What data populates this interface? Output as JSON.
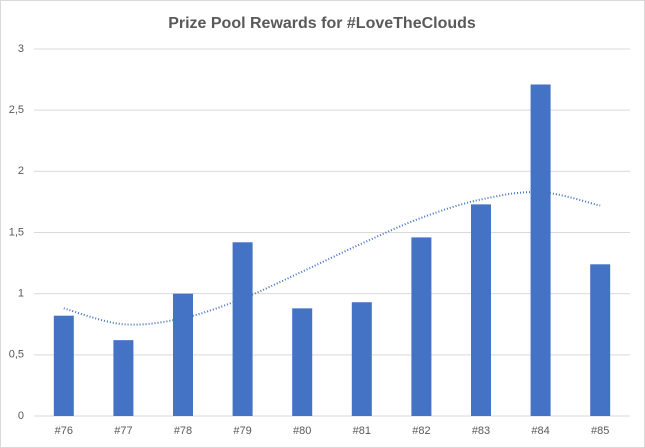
{
  "chart_data": {
    "type": "bar",
    "title": "Prize Pool Rewards for #LoveTheClouds",
    "categories": [
      "#76",
      "#77",
      "#78",
      "#79",
      "#80",
      "#81",
      "#82",
      "#83",
      "#84",
      "#85"
    ],
    "values": [
      0.82,
      0.62,
      1.0,
      1.42,
      0.88,
      0.93,
      1.46,
      1.73,
      2.71,
      1.24
    ],
    "color": "#4472c4",
    "trendline": {
      "values": [
        0.88,
        0.75,
        0.8,
        0.96,
        1.18,
        1.41,
        1.62,
        1.77,
        1.83,
        1.72
      ],
      "color": "#4472c4",
      "style": "dotted"
    },
    "ylim": [
      0,
      3
    ],
    "yticks": [
      0,
      {
        "value": 0.5,
        "label": "0,5"
      },
      1,
      {
        "value": 1.5,
        "label": "1,5"
      },
      2,
      {
        "value": 2.5,
        "label": "2,5"
      },
      3
    ],
    "grid": true
  }
}
